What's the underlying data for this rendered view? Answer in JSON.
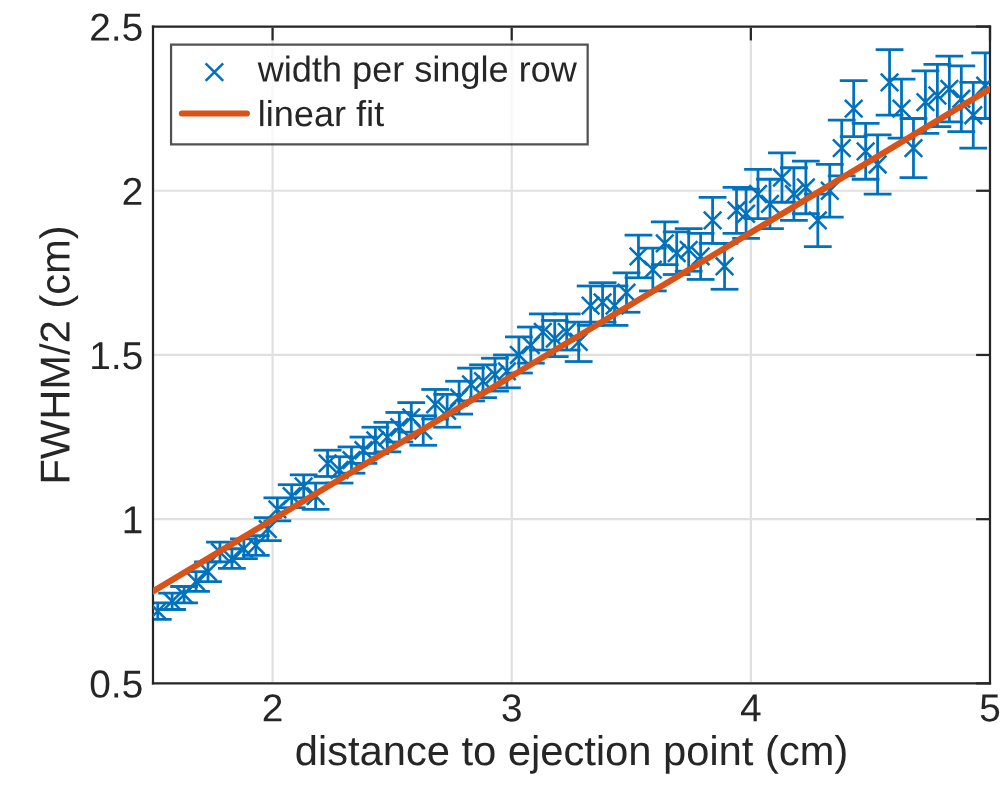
{
  "chart_data": {
    "type": "scatter",
    "xlabel": "distance to ejection point (cm)",
    "ylabel": "FWHM/2 (cm)",
    "xlim": [
      1.5,
      5
    ],
    "xticks": [
      2,
      3,
      4,
      5
    ],
    "ylim": [
      0.5,
      2.5
    ],
    "yticks": [
      0.5,
      1,
      1.5,
      2,
      2.5
    ],
    "grid": true,
    "legend": "top left",
    "series": [
      {
        "name": "width per single row",
        "color": "#0072bd",
        "marker": "cross",
        "x": [
          1.52,
          1.58,
          1.63,
          1.68,
          1.73,
          1.78,
          1.83,
          1.88,
          1.93,
          1.98,
          2.02,
          2.08,
          2.13,
          2.18,
          2.23,
          2.28,
          2.33,
          2.38,
          2.43,
          2.48,
          2.53,
          2.58,
          2.63,
          2.68,
          2.73,
          2.78,
          2.83,
          2.88,
          2.93,
          2.98,
          3.03,
          3.08,
          3.13,
          3.18,
          3.23,
          3.28,
          3.33,
          3.38,
          3.43,
          3.48,
          3.53,
          3.59,
          3.64,
          3.69,
          3.74,
          3.79,
          3.84,
          3.89,
          3.94,
          3.98,
          4.03,
          4.08,
          4.13,
          4.18,
          4.23,
          4.28,
          4.33,
          4.38,
          4.43,
          4.48,
          4.53,
          4.58,
          4.63,
          4.68,
          4.73,
          4.78,
          4.83,
          4.88,
          4.93,
          4.98
        ],
        "values": [
          0.72,
          0.75,
          0.77,
          0.81,
          0.84,
          0.9,
          0.88,
          0.91,
          0.92,
          0.97,
          1.03,
          1.07,
          1.1,
          1.07,
          1.17,
          1.15,
          1.18,
          1.21,
          1.24,
          1.25,
          1.28,
          1.31,
          1.27,
          1.35,
          1.33,
          1.37,
          1.41,
          1.42,
          1.44,
          1.45,
          1.5,
          1.53,
          1.57,
          1.55,
          1.57,
          1.54,
          1.65,
          1.66,
          1.65,
          1.69,
          1.8,
          1.76,
          1.84,
          1.81,
          1.82,
          1.8,
          1.91,
          1.77,
          1.94,
          1.93,
          1.99,
          1.96,
          2.04,
          1.99,
          2.01,
          1.91,
          2.0,
          2.13,
          2.25,
          2.12,
          2.08,
          2.33,
          2.25,
          2.13,
          2.27,
          2.29,
          2.31,
          2.28,
          2.23,
          2.32
        ],
        "errors": [
          0.025,
          0.025,
          0.025,
          0.03,
          0.03,
          0.03,
          0.03,
          0.03,
          0.03,
          0.035,
          0.035,
          0.035,
          0.035,
          0.04,
          0.04,
          0.04,
          0.04,
          0.04,
          0.04,
          0.045,
          0.045,
          0.045,
          0.045,
          0.045,
          0.05,
          0.05,
          0.05,
          0.05,
          0.05,
          0.05,
          0.055,
          0.055,
          0.055,
          0.055,
          0.055,
          0.06,
          0.06,
          0.06,
          0.06,
          0.06,
          0.065,
          0.065,
          0.065,
          0.065,
          0.065,
          0.07,
          0.07,
          0.07,
          0.07,
          0.075,
          0.075,
          0.075,
          0.075,
          0.08,
          0.08,
          0.08,
          0.08,
          0.085,
          0.085,
          0.085,
          0.09,
          0.1,
          0.09,
          0.09,
          0.095,
          0.095,
          0.1,
          0.1,
          0.1,
          0.1
        ]
      },
      {
        "name": "linear fit",
        "type": "line",
        "color": "#d95319",
        "marker": "none",
        "line_style": "solid",
        "x": [
          1.5,
          5
        ],
        "values": [
          0.78,
          2.31
        ]
      }
    ]
  }
}
